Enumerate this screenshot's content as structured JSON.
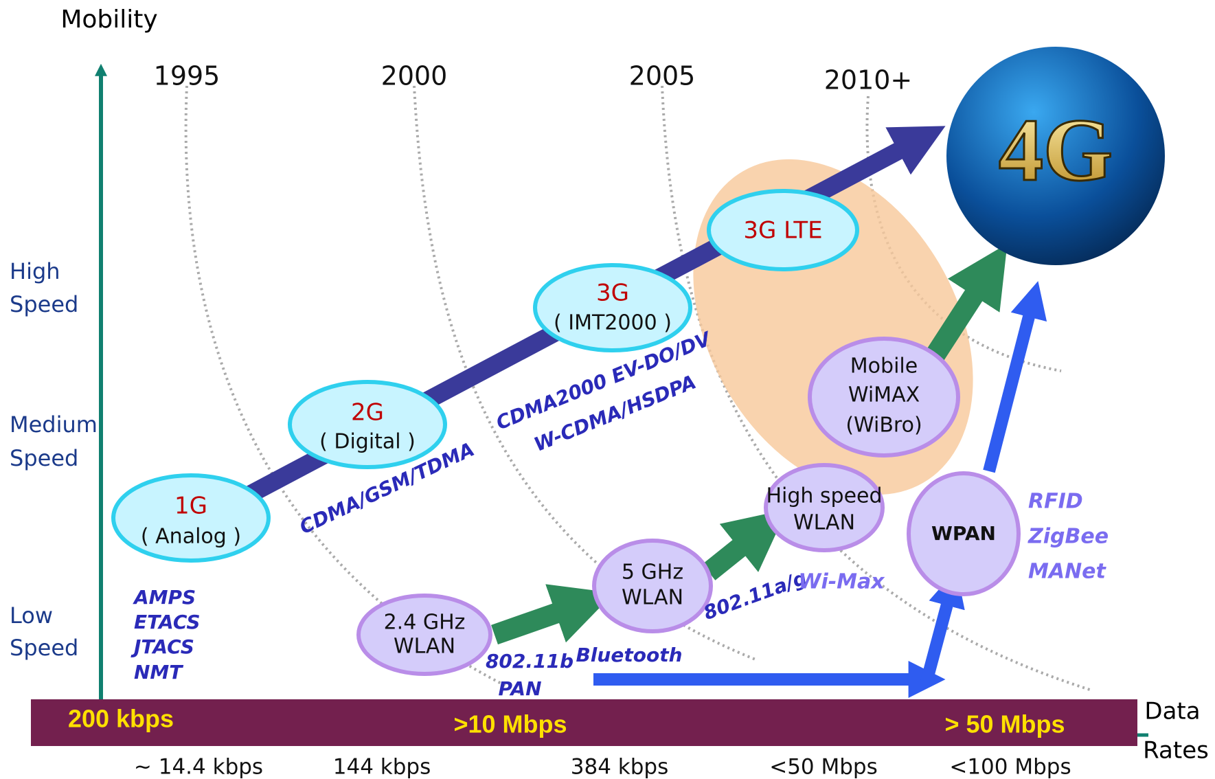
{
  "axis": {
    "y_label": "Mobility",
    "x_label": [
      "Data",
      "Rates"
    ]
  },
  "years": [
    "1995",
    "2000",
    "2005",
    "2010+"
  ],
  "speed_levels": [
    [
      "High",
      "Speed"
    ],
    [
      "Medium",
      "Speed"
    ],
    [
      "Low",
      "Speed"
    ]
  ],
  "generations": [
    {
      "title": "1G",
      "subtitle": "( Analog )"
    },
    {
      "title": "2G",
      "subtitle": "( Digital )"
    },
    {
      "title": "3G",
      "subtitle": "( IMT2000 )"
    },
    {
      "title": "3G LTE"
    }
  ],
  "wireless_nodes": [
    [
      "2.4 GHz",
      "WLAN"
    ],
    [
      "5 GHz",
      "WLAN"
    ],
    [
      "High speed",
      "WLAN"
    ],
    [
      "Mobile",
      "WiMAX",
      "(WiBro)"
    ],
    [
      "WPAN"
    ]
  ],
  "target": "4G",
  "annotations": {
    "first_gen": [
      "AMPS",
      "ETACS",
      "JTACS",
      "NMT"
    ],
    "second_gen": "CDMA/GSM/TDMA",
    "third_gen": [
      "CDMA2000  EV-DO/DV",
      "W-CDMA/HSDPA"
    ],
    "wlan_b": [
      "802.11b",
      "PAN"
    ],
    "bluetooth": "Bluetooth",
    "wlan_ag": "802.11a/g",
    "wimax": "Wi-Max",
    "wpan": [
      "RFID",
      "ZigBee",
      "MANet"
    ]
  },
  "rate_bar": [
    "200 kbps",
    ">10 Mbps",
    "> 50 Mbps"
  ],
  "rates": [
    "~ 14.4 kbps",
    "144 kbps",
    "384 kbps",
    "<50 Mbps",
    "<100 Mbps"
  ]
}
